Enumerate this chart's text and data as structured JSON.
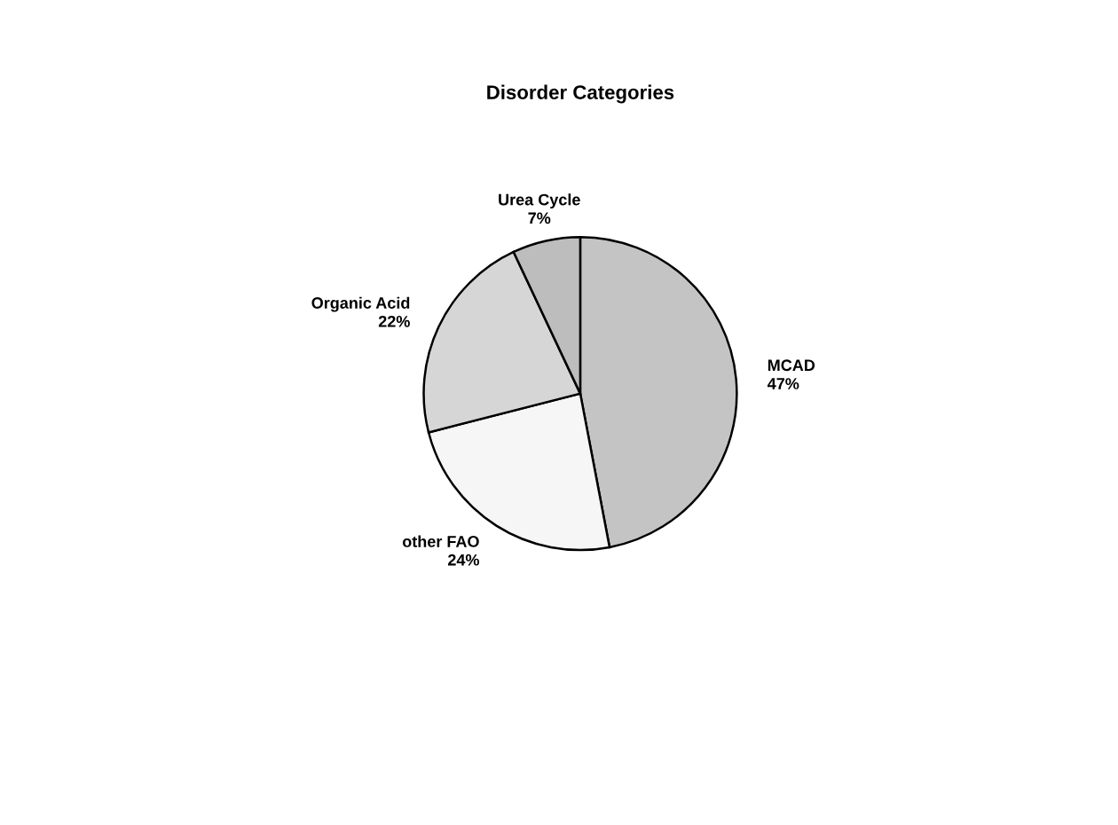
{
  "chart_data": {
    "type": "pie",
    "title": "Disorder Categories",
    "categories": [
      "MCAD",
      "other FAO",
      "Organic Acid",
      "Urea Cycle"
    ],
    "values": [
      47,
      24,
      22,
      7
    ],
    "value_labels": [
      "47%",
      "24%",
      "22%",
      "7%"
    ],
    "colors": [
      "#c4c4c4",
      "#f6f6f6",
      "#d6d6d6",
      "#bdbdbd"
    ]
  }
}
